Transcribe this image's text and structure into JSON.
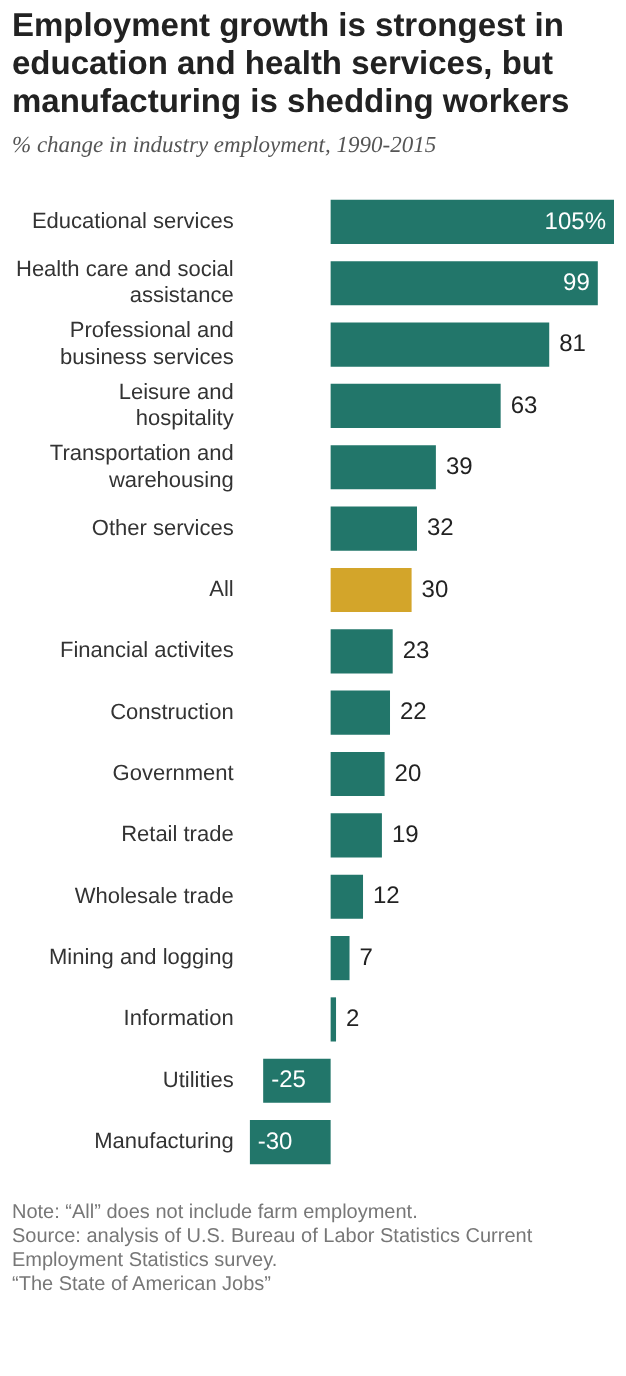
{
  "chart_data": {
    "type": "bar",
    "orientation": "horizontal",
    "title": "Employment growth is strongest in education and health services, but manufacturing is shedding workers",
    "subtitle": "% change in industry employment, 1990-2015",
    "categories": [
      "Educational services",
      "Health care and social assistance",
      "Professional and business services",
      "Leisure and hospitality",
      "Transportation and warehousing",
      "Other services",
      "All",
      "Financial activites",
      "Construction",
      "Government",
      "Retail trade",
      "Wholesale trade",
      "Mining and logging",
      "Information",
      "Utilities",
      "Manufacturing"
    ],
    "values": [
      105,
      99,
      81,
      63,
      39,
      32,
      30,
      23,
      22,
      20,
      19,
      12,
      7,
      2,
      -25,
      -30
    ],
    "value_labels": [
      "105%",
      "99",
      "81",
      "63",
      "39",
      "32",
      "30",
      "23",
      "22",
      "20",
      "19",
      "12",
      "7",
      "2",
      "-25",
      "-30"
    ],
    "colors": [
      "#22766a",
      "#22766a",
      "#22766a",
      "#22766a",
      "#22766a",
      "#22766a",
      "#d3a52a",
      "#22766a",
      "#22766a",
      "#22766a",
      "#22766a",
      "#22766a",
      "#22766a",
      "#22766a",
      "#22766a",
      "#22766a"
    ],
    "grid": false,
    "annotations": [
      "Note: “All” does not include farm employment.",
      "Source: analysis of U.S. Bureau of Labor Statistics Current Employment Statistics survey.",
      "“The State of American Jobs”"
    ]
  }
}
